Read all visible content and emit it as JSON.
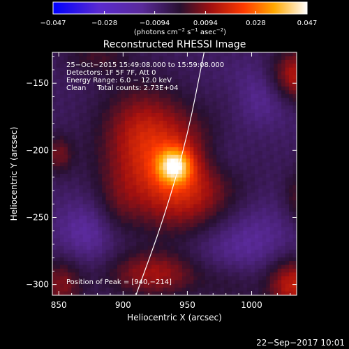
{
  "chart_data": {
    "type": "heatmap",
    "title": "Reconstructed RHESSI Image",
    "xlabel": "Heliocentric X (arcsec)",
    "ylabel": "Heliocentric Y (arcsec)",
    "xlim": [
      845,
      1035
    ],
    "ylim": [
      -308,
      -127
    ],
    "x_ticks": [
      850,
      900,
      950,
      1000
    ],
    "x_tick_labels": [
      "850",
      "900",
      "950",
      "1000"
    ],
    "y_ticks": [
      -150,
      -200,
      -250,
      -300
    ],
    "y_tick_labels": [
      "−150",
      "−200",
      "−250",
      "−300"
    ],
    "colorbar": {
      "range": [
        -0.047,
        0.047
      ],
      "ticks": [
        -0.047,
        -0.028,
        -0.0094,
        0.0094,
        0.028,
        0.047
      ],
      "tick_labels": [
        "−0.047",
        "−0.028",
        "−0.0094",
        "0.0094",
        "0.028",
        "0.047"
      ],
      "unit_label": "(photons cm",
      "unit_exp1": "−2",
      "unit_mid": " s",
      "unit_exp2": "−1",
      "unit_end": " asec",
      "unit_exp3": "−2",
      "unit_close": ")"
    },
    "info_lines": [
      "25−Oct−2015 15:49:08.000 to 15:59:08.000",
      "Detectors: 1F 5F 7F, Att 0",
      "Energy Range: 6.0 − 12.0 keV",
      "Clean     Total counts: 2.73E+04"
    ],
    "peak_label": "Position of Peak = [940,−214]",
    "peak": [
      940,
      -214
    ],
    "limb": [
      [
        910,
        -308
      ],
      [
        932,
        -250
      ],
      [
        950,
        -190
      ],
      [
        963,
        -127
      ]
    ],
    "blobs": [
      {
        "x": 940,
        "y": -212,
        "sx": 9,
        "sy": 9,
        "amp": 0.03
      },
      {
        "x": 935,
        "y": -212,
        "sx": 32,
        "sy": 30,
        "amp": 0.024
      },
      {
        "x": 958,
        "y": -245,
        "sx": 26,
        "sy": 22,
        "amp": 0.012
      },
      {
        "x": 912,
        "y": -180,
        "sx": 20,
        "sy": 22,
        "amp": 0.01
      },
      {
        "x": 895,
        "y": -245,
        "sx": 12,
        "sy": 18,
        "amp": 0.007
      },
      {
        "x": 1035,
        "y": -145,
        "sx": 14,
        "sy": 14,
        "amp": 0.022
      },
      {
        "x": 1032,
        "y": -300,
        "sx": 14,
        "sy": 14,
        "amp": 0.022
      },
      {
        "x": 925,
        "y": -292,
        "sx": 26,
        "sy": 12,
        "amp": 0.018
      },
      {
        "x": 852,
        "y": -300,
        "sx": 12,
        "sy": 14,
        "amp": 0.014
      },
      {
        "x": 850,
        "y": -203,
        "sx": 8,
        "sy": 10,
        "amp": 0.012
      },
      {
        "x": 1040,
        "y": -235,
        "sx": 10,
        "sy": 14,
        "amp": 0.012
      },
      {
        "x": 985,
        "y": -160,
        "sx": 14,
        "sy": 12,
        "amp": 0.006
      },
      {
        "x": 880,
        "y": -130,
        "sx": 18,
        "sy": 10,
        "amp": 0.008
      },
      {
        "x": 985,
        "y": -300,
        "sx": 18,
        "sy": 12,
        "amp": 0.006
      },
      {
        "x": 980,
        "y": -265,
        "sx": 35,
        "sy": 22,
        "amp": -0.012
      },
      {
        "x": 875,
        "y": -260,
        "sx": 20,
        "sy": 18,
        "amp": -0.01
      },
      {
        "x": 975,
        "y": -205,
        "sx": 16,
        "sy": 14,
        "amp": -0.008
      },
      {
        "x": 1000,
        "y": -160,
        "sx": 25,
        "sy": 16,
        "amp": -0.01
      }
    ],
    "baseline": -0.006
  },
  "footer_date": "22−Sep−2017 10:01"
}
